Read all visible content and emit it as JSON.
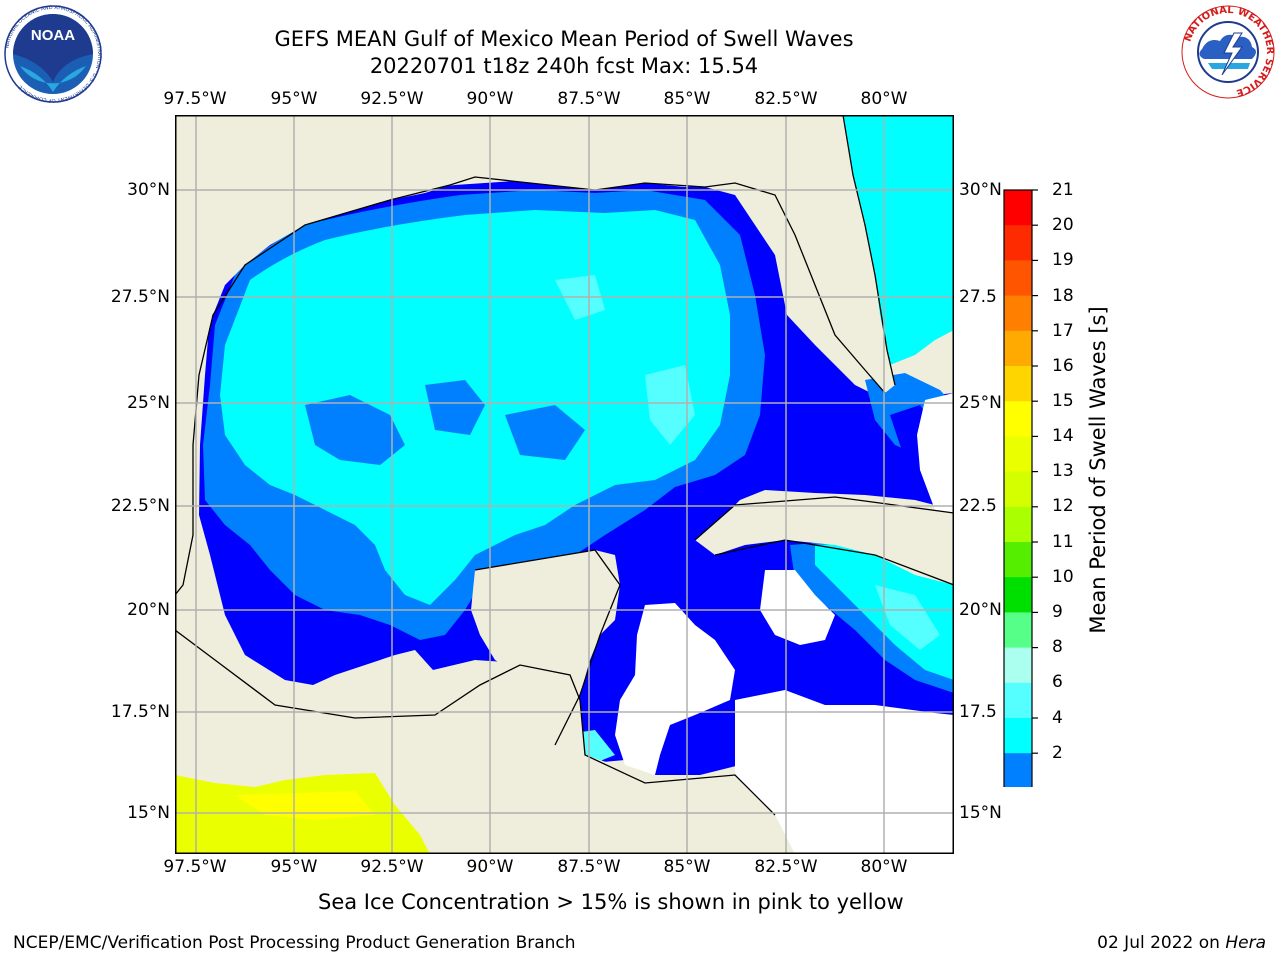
{
  "header": {
    "title_line1": "GEFS MEAN Gulf of Mexico Mean Period of Swell Waves",
    "title_line2": "20220701 t18z 240h fcst   Max: 15.54"
  },
  "logos": {
    "noaa_text": "NOAA",
    "noaa_ring": "NATIONAL OCEANIC AND ATMOSPHERIC ADMINISTRATION · U.S. DEPARTMENT OF COMMERCE",
    "nws_ring": "NATIONAL WEATHER SERVICE"
  },
  "axes": {
    "lon_ticks": [
      "97.5°W",
      "95°W",
      "92.5°W",
      "90°W",
      "87.5°W",
      "85°W",
      "82.5°W",
      "80°W"
    ],
    "lat_ticks_left": [
      "30°N",
      "27.5°N",
      "25°N",
      "22.5°N",
      "20°N",
      "17.5°N",
      "15°N"
    ],
    "lat_ticks_right": [
      "30°N",
      "27.5",
      "25°N",
      "22.5",
      "20°N",
      "17.5",
      "15°N"
    ]
  },
  "colorbar": {
    "label": "Mean Period of Swell Waves [s]",
    "ticks": [
      "21",
      "20",
      "19",
      "18",
      "17",
      "16",
      "15",
      "14",
      "13",
      "12",
      "11",
      "10",
      "9",
      "8",
      "6",
      "4",
      "2"
    ],
    "colors": [
      "#ff0000",
      "#ff2b00",
      "#ff5500",
      "#ff8000",
      "#ffaa00",
      "#ffd500",
      "#ffff00",
      "#eaff00",
      "#d4ff00",
      "#aaff00",
      "#55ee00",
      "#00e000",
      "#55ff88",
      "#aaffee",
      "#55ffff",
      "#00ffff",
      "#0080ff",
      "#0000ff"
    ]
  },
  "map_colors": {
    "land": "#efeedc",
    "period_2_4": "#0080ff",
    "period_4_6": "#00ffff",
    "period_6_8": "#55ffff",
    "period_lt_2": "#0000ff",
    "sea_ice": "#eaff00",
    "sea_ice_edge": "#ffff00",
    "grid": "#b0b0b0"
  },
  "note": "Sea Ice Concentration > 15% is shown in pink to yellow",
  "footer": {
    "left": "NCEP/EMC/Verification Post Processing Product Generation Branch",
    "right_date": "02 Jul 2022 on",
    "right_machine": "Hera"
  }
}
